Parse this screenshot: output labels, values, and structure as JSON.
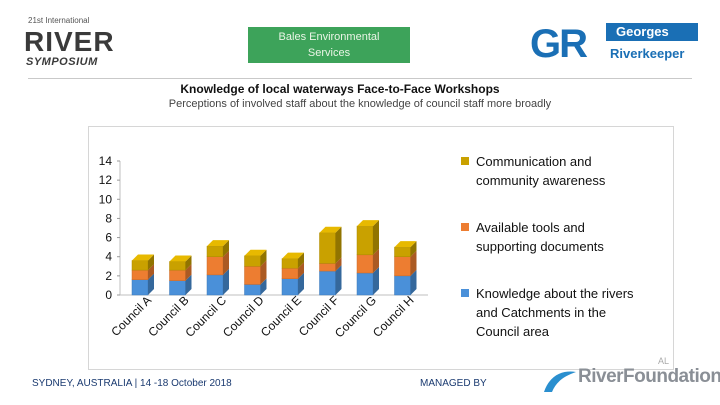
{
  "header": {
    "left_logo": {
      "small": "21st International",
      "big": "RIVER",
      "sub": "SYMPOSIUM"
    },
    "sponsor": {
      "line1": "Bales Environmental",
      "line2": "Services"
    },
    "right_logo": {
      "letters": "GR",
      "top": "Georges",
      "bottom": "Riverkeeper"
    }
  },
  "title": "Knowledge of local waterways Face-to-Face Workshops",
  "subtitle": "Perceptions of involved staff about the knowledge of council staff more broadly",
  "chart_data": {
    "type": "bar",
    "stacked": true,
    "style": "3d",
    "categories": [
      "Council A",
      "Council B",
      "Council C",
      "Council D",
      "Council E",
      "Council F",
      "Council G",
      "Council H"
    ],
    "yticks": [
      "0",
      "2",
      "4",
      "6",
      "8",
      "10",
      "12",
      "14"
    ],
    "ylim": [
      0,
      14
    ],
    "series": [
      {
        "name": "Knowledge about the rivers and Catchments in the Council area",
        "color": "#4a90d9",
        "values": [
          1.6,
          1.5,
          2.1,
          1.1,
          1.7,
          2.5,
          2.3,
          2.0
        ]
      },
      {
        "name": "Available tools and supporting documents",
        "color": "#ed7d31",
        "values": [
          1.0,
          1.1,
          1.9,
          1.9,
          1.1,
          0.8,
          1.9,
          2.0
        ]
      },
      {
        "name": "Communication and community awareness",
        "color": "#c9a100",
        "values": [
          1.0,
          0.9,
          1.1,
          1.1,
          1.0,
          3.2,
          3.0,
          1.0
        ]
      }
    ],
    "legend_position": "right",
    "grid": false
  },
  "footer": {
    "left": "SYDNEY, AUSTRALIA |  14 -18 October 2018",
    "middle": "MANAGED BY",
    "logo_text": "RiverFoundation",
    "logo_small": "AL"
  }
}
